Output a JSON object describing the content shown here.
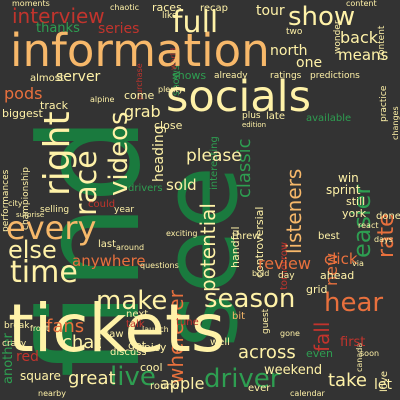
{
  "palette": {
    "background": "#333333",
    "dark_green": "#1a7a3e",
    "green": "#2e9e51",
    "light_green": "#9ed07a",
    "cream": "#fff2a8",
    "peach": "#f7b86a",
    "orange": "#e8703d",
    "red": "#c1342d",
    "dark_red": "#8f1d24"
  },
  "words": [
    {
      "text": "find",
      "color": "#1a7a3e"
    },
    {
      "text": "see",
      "color": "#1a7a3e"
    },
    {
      "text": "tickets",
      "color": "#fff2a8"
    },
    {
      "text": "information",
      "color": "#f7b86a"
    },
    {
      "text": "socials",
      "color": "#fff2a8"
    },
    {
      "text": "race",
      "color": "#fff2a8"
    },
    {
      "text": "every",
      "color": "#f7b86a"
    },
    {
      "text": "time",
      "color": "#fff2a8"
    },
    {
      "text": "else",
      "color": "#fff2a8"
    },
    {
      "text": "right",
      "color": "#fff2a8"
    },
    {
      "text": "make",
      "color": "#fff2a8"
    },
    {
      "text": "season",
      "color": "#fff2a8"
    },
    {
      "text": "hear",
      "color": "#e8703d"
    },
    {
      "text": "live",
      "color": "#2e9e51"
    },
    {
      "text": "driver",
      "color": "#2e9e51"
    },
    {
      "text": "videos",
      "color": "#fff2a8"
    },
    {
      "text": "show",
      "color": "#fff2a8"
    },
    {
      "text": "full",
      "color": "#fff2a8"
    },
    {
      "text": "interview",
      "color": "#c1342d"
    },
    {
      "text": "fans",
      "color": "#e8703d"
    },
    {
      "text": "chat",
      "color": "#fff2a8"
    },
    {
      "text": "great",
      "color": "#fff2a8"
    },
    {
      "text": "apple",
      "color": "#fff2a8"
    },
    {
      "text": "take",
      "color": "#fff2a8"
    },
    {
      "text": "let",
      "color": "#fff2a8"
    },
    {
      "text": "across",
      "color": "#fff2a8"
    },
    {
      "text": "weekend",
      "color": "#fff2a8"
    },
    {
      "text": "wherever",
      "color": "#e8703d"
    },
    {
      "text": "potential",
      "color": "#fff2a8"
    },
    {
      "text": "listeners",
      "color": "#f7b86a"
    },
    {
      "text": "classic",
      "color": "#2e9e51"
    },
    {
      "text": "please",
      "color": "#fff2a8"
    },
    {
      "text": "anywhere",
      "color": "#e8703d"
    },
    {
      "text": "review",
      "color": "#e8703d"
    },
    {
      "text": "click",
      "color": "#e8703d"
    },
    {
      "text": "ahead",
      "color": "#fff2a8"
    },
    {
      "text": "easier",
      "color": "#2e9e51"
    },
    {
      "text": "rate",
      "color": "#e8703d"
    },
    {
      "text": "new",
      "color": "#e8703d"
    },
    {
      "text": "sold",
      "color": "#fff2a8"
    },
    {
      "text": "grab",
      "color": "#fff2a8"
    },
    {
      "text": "server",
      "color": "#fff2a8"
    },
    {
      "text": "pods",
      "color": "#e8703d"
    },
    {
      "text": "thanks",
      "color": "#2e9e51"
    },
    {
      "text": "series",
      "color": "#c1342d"
    },
    {
      "text": "tour",
      "color": "#fff2a8"
    },
    {
      "text": "back",
      "color": "#fff2a8"
    },
    {
      "text": "means",
      "color": "#fff2a8"
    },
    {
      "text": "north",
      "color": "#fff2a8"
    },
    {
      "text": "one",
      "color": "#fff2a8"
    },
    {
      "text": "fall",
      "color": "#c1342d"
    },
    {
      "text": "first",
      "color": "#c1342d"
    },
    {
      "text": "heading",
      "color": "#fff2a8"
    },
    {
      "text": "win",
      "color": "#fff2a8"
    },
    {
      "text": "sprint",
      "color": "#fff2a8"
    },
    {
      "text": "still",
      "color": "#fff2a8"
    },
    {
      "text": "york",
      "color": "#fff2a8"
    },
    {
      "text": "best",
      "color": "#fff2a8"
    },
    {
      "text": "threw",
      "color": "#fff2a8"
    },
    {
      "text": "grid",
      "color": "#fff2a8"
    },
    {
      "text": "red",
      "color": "#c1342d"
    },
    {
      "text": "talk",
      "color": "#c1342d"
    },
    {
      "text": "tune",
      "color": "#c1342d"
    },
    {
      "text": "bit",
      "color": "#f7b86a"
    },
    {
      "text": "got",
      "color": "#fff2a8"
    },
    {
      "text": "cool",
      "color": "#fff2a8"
    },
    {
      "text": "spicy",
      "color": "#fff2a8"
    },
    {
      "text": "next",
      "color": "#fff2a8"
    },
    {
      "text": "saw",
      "color": "#fff2a8"
    },
    {
      "text": "well",
      "color": "#fff2a8"
    },
    {
      "text": "round",
      "color": "#fff2a8"
    },
    {
      "text": "square",
      "color": "#fff2a8"
    },
    {
      "text": "discuss",
      "color": "#fff2a8"
    },
    {
      "text": "another",
      "color": "#2e9e51"
    },
    {
      "text": "close",
      "color": "#fff2a8"
    },
    {
      "text": "come",
      "color": "#fff2a8"
    },
    {
      "text": "shows",
      "color": "#2e9e51"
    },
    {
      "text": "even",
      "color": "#2e9e51"
    },
    {
      "text": "ever",
      "color": "#fff2a8"
    },
    {
      "text": "done",
      "color": "#fff2a8"
    },
    {
      "text": "chaotic",
      "color": "#fff2a8"
    },
    {
      "text": "races",
      "color": "#fff2a8"
    },
    {
      "text": "like",
      "color": "#fff2a8"
    },
    {
      "text": "recap",
      "color": "#fff2a8"
    },
    {
      "text": "wonder",
      "color": "#fff2a8"
    },
    {
      "text": "moments",
      "color": "#fff2a8"
    },
    {
      "text": "almost",
      "color": "#fff2a8"
    },
    {
      "text": "biggest",
      "color": "#fff2a8"
    },
    {
      "text": "track",
      "color": "#fff2a8"
    },
    {
      "text": "already",
      "color": "#fff2a8"
    },
    {
      "text": "ratings",
      "color": "#fff2a8"
    },
    {
      "text": "predictions",
      "color": "#fff2a8"
    },
    {
      "text": "available",
      "color": "#2e9e51"
    },
    {
      "text": "interesting",
      "color": "#2e9e51"
    },
    {
      "text": "controversial",
      "color": "#fff2a8"
    },
    {
      "text": "handful",
      "color": "#fff2a8"
    },
    {
      "text": "performances",
      "color": "#fff2a8"
    },
    {
      "text": "championship",
      "color": "#fff2a8"
    },
    {
      "text": "drivers",
      "color": "#2e9e51"
    },
    {
      "text": "selling",
      "color": "#fff2a8"
    },
    {
      "text": "could",
      "color": "#c1342d"
    },
    {
      "text": "year",
      "color": "#fff2a8"
    },
    {
      "text": "last",
      "color": "#fff2a8"
    },
    {
      "text": "around",
      "color": "#fff2a8"
    },
    {
      "text": "plus",
      "color": "#fff2a8"
    },
    {
      "text": "late",
      "color": "#fff2a8"
    },
    {
      "text": "tomorrow",
      "color": "#c1342d"
    },
    {
      "text": "bold",
      "color": "#fff2a8"
    },
    {
      "text": "day",
      "color": "#fff2a8"
    },
    {
      "text": "canada",
      "color": "#fff2a8"
    },
    {
      "text": "launch",
      "color": "#fff2a8"
    },
    {
      "text": "front",
      "color": "#fff2a8"
    },
    {
      "text": "nearby",
      "color": "#fff2a8"
    },
    {
      "text": "city",
      "color": "#fff2a8"
    },
    {
      "text": "break",
      "color": "#fff2a8"
    },
    {
      "text": "crazy",
      "color": "#fff2a8"
    },
    {
      "text": "gone",
      "color": "#fff2a8"
    },
    {
      "text": "going",
      "color": "#fff2a8"
    },
    {
      "text": "love",
      "color": "#fff2a8"
    },
    {
      "text": "soon",
      "color": "#fff2a8"
    },
    {
      "text": "guest",
      "color": "#fff2a8"
    },
    {
      "text": "calendar",
      "color": "#fff2a8"
    },
    {
      "text": "content",
      "color": "#fff2a8"
    },
    {
      "text": "world",
      "color": "#c1342d"
    },
    {
      "text": "practice",
      "color": "#fff2a8"
    },
    {
      "text": "changes",
      "color": "#fff2a8"
    },
    {
      "text": "purchase",
      "color": "#c1342d"
    },
    {
      "text": "plenty",
      "color": "#fff2a8"
    },
    {
      "text": "edition",
      "color": "#fff2a8"
    },
    {
      "text": "alpine",
      "color": "#fff2a8"
    },
    {
      "text": "two",
      "color": "#fff2a8"
    },
    {
      "text": "surprise",
      "color": "#fff2a8"
    },
    {
      "text": "questions",
      "color": "#fff2a8"
    },
    {
      "text": "exciting",
      "color": "#fff2a8"
    },
    {
      "text": "react",
      "color": "#fff2a8"
    },
    {
      "text": "days",
      "color": "#fff2a8"
    },
    {
      "text": "via",
      "color": "#fff2a8"
    }
  ]
}
